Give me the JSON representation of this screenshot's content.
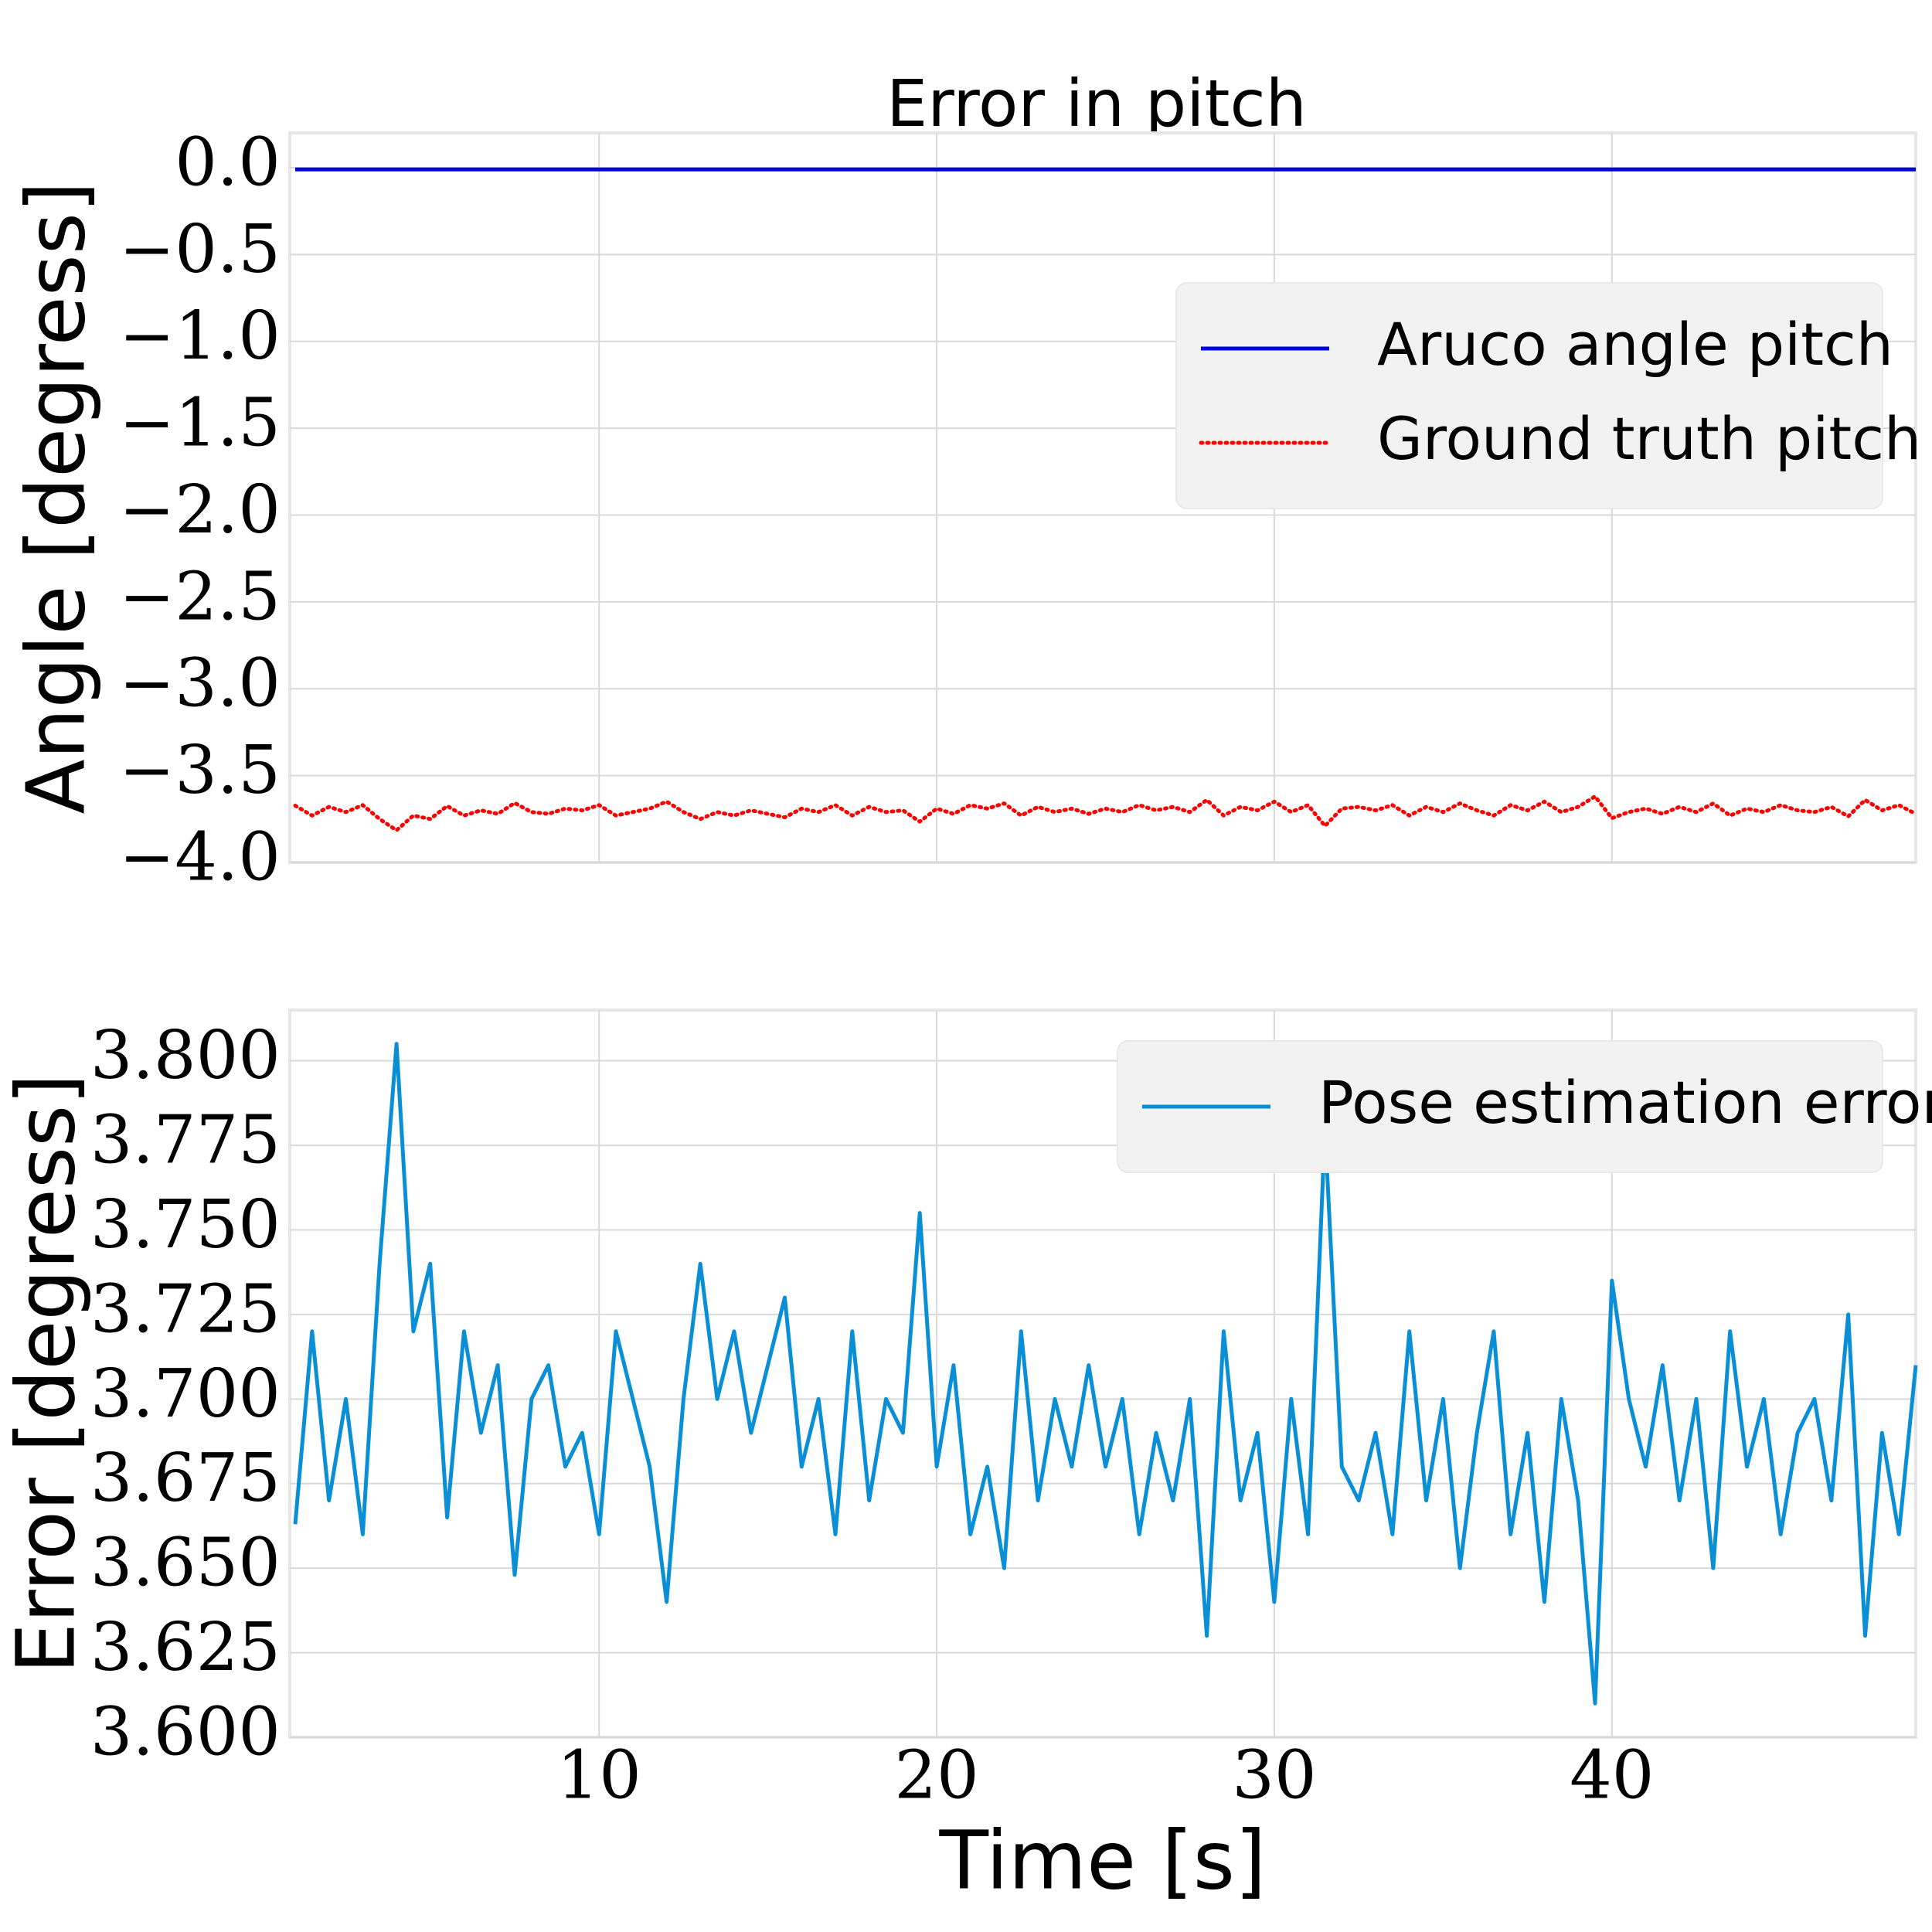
{
  "chart_data": [
    {
      "type": "line",
      "title": "Error in pitch",
      "ylabel": "Angle [degress]",
      "grid": true,
      "legend": "center right",
      "xlim": [
        0.84,
        49.0
      ],
      "xticks": [
        10,
        20,
        30,
        40
      ],
      "ylim": [
        -4.0,
        0.2
      ],
      "yticks": [
        {
          "value": 0.0,
          "label": "0.0"
        },
        {
          "value": -0.5,
          "label": "−0.5"
        },
        {
          "value": -1.0,
          "label": "−1.0"
        },
        {
          "value": -1.5,
          "label": "−1.5"
        },
        {
          "value": -2.0,
          "label": "−2.0"
        },
        {
          "value": -2.5,
          "label": "−2.5"
        },
        {
          "value": -3.0,
          "label": "−3.0"
        },
        {
          "value": -3.5,
          "label": "−3.5"
        },
        {
          "value": -4.0,
          "label": "−4.0"
        }
      ],
      "x": [
        1,
        1.5,
        2,
        2.5,
        3,
        3.5,
        4,
        4.5,
        5,
        5.5,
        6,
        6.5,
        7,
        7.5,
        8,
        8.5,
        9,
        9.5,
        10,
        10.5,
        11,
        11.5,
        12,
        12.5,
        13,
        13.5,
        14,
        14.5,
        15,
        15.5,
        16,
        16.5,
        17,
        17.5,
        18,
        18.5,
        19,
        19.5,
        20,
        20.5,
        21,
        21.5,
        22,
        22.5,
        23,
        23.5,
        24,
        24.5,
        25,
        25.5,
        26,
        26.5,
        27,
        27.5,
        28,
        28.5,
        29,
        29.5,
        30,
        30.5,
        31,
        31.5,
        32,
        32.5,
        33,
        33.5,
        34,
        34.5,
        35,
        35.5,
        36,
        36.5,
        37,
        37.5,
        38,
        38.5,
        39,
        39.5,
        40,
        40.5,
        41,
        41.5,
        42,
        42.5,
        43,
        43.5,
        44,
        44.5,
        45,
        45.5,
        46,
        46.5,
        47,
        47.5,
        48,
        48.5,
        49
      ],
      "series": [
        {
          "name": "Aruco angle pitch",
          "color": "#0000e0",
          "linestyle": "solid",
          "values": [
            -0.01,
            -0.01,
            -0.01,
            -0.01,
            -0.01,
            -0.01,
            -0.01,
            -0.01,
            -0.01,
            -0.01,
            -0.01,
            -0.01,
            -0.01,
            -0.01,
            -0.01,
            -0.01,
            -0.01,
            -0.01,
            -0.01,
            -0.01,
            -0.01,
            -0.01,
            -0.01,
            -0.01,
            -0.01,
            -0.01,
            -0.01,
            -0.01,
            -0.01,
            -0.01,
            -0.01,
            -0.01,
            -0.01,
            -0.01,
            -0.01,
            -0.01,
            -0.01,
            -0.01,
            -0.01,
            -0.01,
            -0.01,
            -0.01,
            -0.01,
            -0.01,
            -0.01,
            -0.01,
            -0.01,
            -0.01,
            -0.01,
            -0.01,
            -0.01,
            -0.01,
            -0.01,
            -0.01,
            -0.01,
            -0.01,
            -0.01,
            -0.01,
            -0.01,
            -0.01,
            -0.01,
            -0.01,
            -0.01,
            -0.01,
            -0.01,
            -0.01,
            -0.01,
            -0.01,
            -0.01,
            -0.01,
            -0.01,
            -0.01,
            -0.01,
            -0.01,
            -0.01,
            -0.01,
            -0.01,
            -0.01,
            -0.01,
            -0.01,
            -0.01,
            -0.01,
            -0.01,
            -0.01,
            -0.01,
            -0.01,
            -0.01,
            -0.01,
            -0.01,
            -0.01,
            -0.01,
            -0.01,
            -0.01,
            -0.01,
            -0.01,
            -0.01,
            -0.01
          ]
        },
        {
          "name": "Ground truth pitch",
          "color": "#ff0000",
          "linestyle": "dotted",
          "values": [
            -3.673,
            -3.73,
            -3.68,
            -3.71,
            -3.67,
            -3.75,
            -3.815,
            -3.73,
            -3.75,
            -3.675,
            -3.73,
            -3.7,
            -3.72,
            -3.658,
            -3.71,
            -3.72,
            -3.69,
            -3.7,
            -3.67,
            -3.73,
            -3.71,
            -3.69,
            -3.65,
            -3.71,
            -3.75,
            -3.71,
            -3.73,
            -3.7,
            -3.72,
            -3.74,
            -3.69,
            -3.71,
            -3.67,
            -3.73,
            -3.68,
            -3.71,
            -3.7,
            -3.765,
            -3.69,
            -3.72,
            -3.67,
            -3.69,
            -3.66,
            -3.73,
            -3.68,
            -3.71,
            -3.69,
            -3.72,
            -3.69,
            -3.71,
            -3.67,
            -3.7,
            -3.68,
            -3.71,
            -3.64,
            -3.73,
            -3.68,
            -3.7,
            -3.65,
            -3.71,
            -3.67,
            -3.79,
            -3.69,
            -3.68,
            -3.7,
            -3.67,
            -3.73,
            -3.68,
            -3.71,
            -3.66,
            -3.7,
            -3.73,
            -3.67,
            -3.7,
            -3.65,
            -3.71,
            -3.68,
            -3.62,
            -3.745,
            -3.71,
            -3.69,
            -3.72,
            -3.68,
            -3.71,
            -3.66,
            -3.73,
            -3.69,
            -3.71,
            -3.67,
            -3.7,
            -3.71,
            -3.68,
            -3.735,
            -3.64,
            -3.7,
            -3.67,
            -3.72
          ]
        }
      ]
    },
    {
      "type": "line",
      "xlabel": "Time [s]",
      "ylabel": "Error [degress]",
      "grid": true,
      "legend": "upper right",
      "xlim": [
        0.84,
        49.0
      ],
      "xticks": [
        10,
        20,
        30,
        40
      ],
      "ylim": [
        3.6,
        3.815
      ],
      "yticks": [
        {
          "value": 3.6,
          "label": "3.600"
        },
        {
          "value": 3.625,
          "label": "3.625"
        },
        {
          "value": 3.65,
          "label": "3.650"
        },
        {
          "value": 3.675,
          "label": "3.675"
        },
        {
          "value": 3.7,
          "label": "3.700"
        },
        {
          "value": 3.725,
          "label": "3.725"
        },
        {
          "value": 3.75,
          "label": "3.750"
        },
        {
          "value": 3.775,
          "label": "3.775"
        },
        {
          "value": 3.8,
          "label": "3.800"
        }
      ],
      "x": [
        1,
        1.5,
        2,
        2.5,
        3,
        3.5,
        4,
        4.5,
        5,
        5.5,
        6,
        6.5,
        7,
        7.5,
        8,
        8.5,
        9,
        9.5,
        10,
        10.5,
        11,
        11.5,
        12,
        12.5,
        13,
        13.5,
        14,
        14.5,
        15,
        15.5,
        16,
        16.5,
        17,
        17.5,
        18,
        18.5,
        19,
        19.5,
        20,
        20.5,
        21,
        21.5,
        22,
        22.5,
        23,
        23.5,
        24,
        24.5,
        25,
        25.5,
        26,
        26.5,
        27,
        27.5,
        28,
        28.5,
        29,
        29.5,
        30,
        30.5,
        31,
        31.5,
        32,
        32.5,
        33,
        33.5,
        34,
        34.5,
        35,
        35.5,
        36,
        36.5,
        37,
        37.5,
        38,
        38.5,
        39,
        39.5,
        40,
        40.5,
        41,
        41.5,
        42,
        42.5,
        43,
        43.5,
        44,
        44.5,
        45,
        45.5,
        46,
        46.5,
        47,
        47.5,
        48,
        48.5,
        49
      ],
      "series": [
        {
          "name": "Pose estimation error",
          "color": "#0a8fd6",
          "linestyle": "solid",
          "values": [
            3.663,
            3.72,
            3.67,
            3.7,
            3.66,
            3.74,
            3.805,
            3.72,
            3.74,
            3.665,
            3.72,
            3.69,
            3.71,
            3.648,
            3.7,
            3.71,
            3.68,
            3.69,
            3.66,
            3.72,
            3.7,
            3.68,
            3.64,
            3.7,
            3.74,
            3.7,
            3.72,
            3.69,
            3.71,
            3.73,
            3.68,
            3.7,
            3.66,
            3.72,
            3.67,
            3.7,
            3.69,
            3.755,
            3.68,
            3.71,
            3.66,
            3.68,
            3.65,
            3.72,
            3.67,
            3.7,
            3.68,
            3.71,
            3.68,
            3.7,
            3.66,
            3.69,
            3.67,
            3.7,
            3.63,
            3.72,
            3.67,
            3.69,
            3.64,
            3.7,
            3.66,
            3.78,
            3.68,
            3.67,
            3.69,
            3.66,
            3.72,
            3.67,
            3.7,
            3.65,
            3.69,
            3.72,
            3.66,
            3.69,
            3.64,
            3.7,
            3.67,
            3.61,
            3.735,
            3.7,
            3.68,
            3.71,
            3.67,
            3.7,
            3.65,
            3.72,
            3.68,
            3.7,
            3.66,
            3.69,
            3.7,
            3.67,
            3.725,
            3.63,
            3.69,
            3.66,
            3.71
          ]
        }
      ]
    }
  ]
}
